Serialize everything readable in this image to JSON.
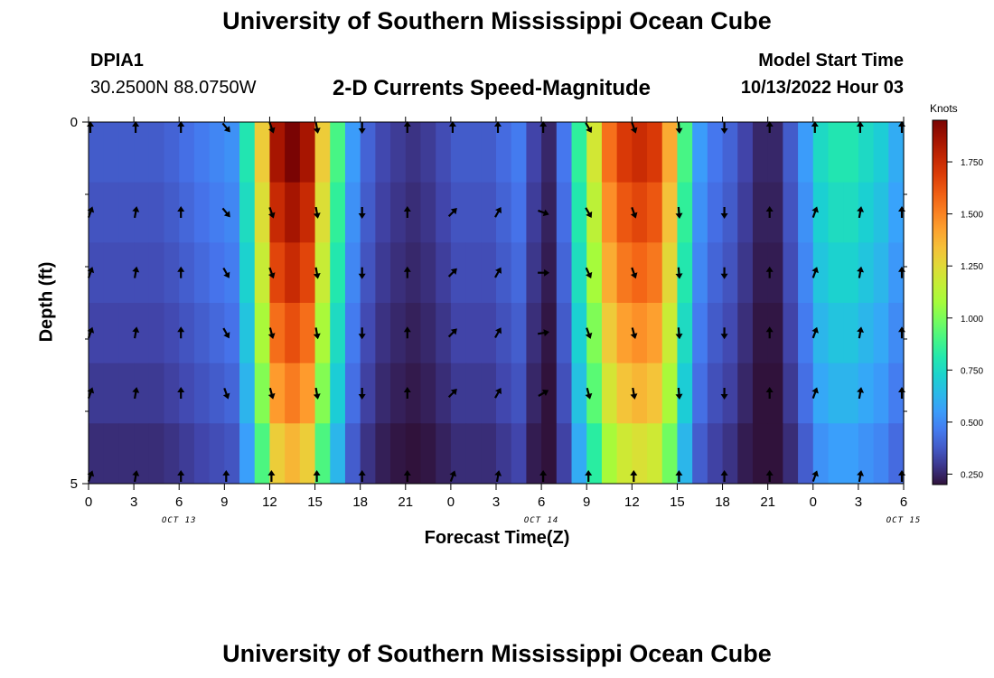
{
  "header": {
    "title": "University of Southern Mississippi Ocean Cube",
    "station": "DPIA1",
    "coords": "30.2500N  88.0750W",
    "subtitle": "2-D Currents Speed-Magnitude",
    "model_start_label": "Model Start Time",
    "model_start_value": "10/13/2022 Hour 03"
  },
  "footer": {
    "title": "University of Southern Mississippi Ocean Cube"
  },
  "chart_data": {
    "type": "heatmap",
    "xlabel": "Forecast Time(Z)",
    "ylabel": "Depth (ft)",
    "x_tick_labels": [
      "0",
      "3",
      "6",
      "9",
      "12",
      "15",
      "18",
      "21",
      "0",
      "3",
      "6",
      "9",
      "12",
      "15",
      "18",
      "21",
      "0",
      "3",
      "6"
    ],
    "date_labels": [
      {
        "label": "OCT 13",
        "tick_index": 2
      },
      {
        "label": "OCT 14",
        "tick_index": 10
      },
      {
        "label": "OCT 15",
        "tick_index": 18
      }
    ],
    "x_range_hours": [
      0,
      54
    ],
    "y_range_ft": [
      0,
      5
    ],
    "y_tick_labels": [
      "0",
      "5"
    ],
    "y_minor_ticks": [
      1,
      2,
      3,
      4
    ],
    "depth_rows": [
      0,
      1,
      2,
      3,
      4,
      5
    ],
    "speed_unit": "Knots",
    "colorbar": {
      "range": [
        0.2,
        1.95
      ],
      "tick_values": [
        0.25,
        0.5,
        0.75,
        1.0,
        1.25,
        1.5,
        1.75
      ],
      "tick_labels": [
        "0.250",
        "0.500",
        "0.750",
        "1.000",
        "1.250",
        "1.500",
        "1.750"
      ]
    },
    "speed_hourly_top": [
      0.38,
      0.38,
      0.38,
      0.38,
      0.38,
      0.4,
      0.43,
      0.46,
      0.49,
      0.52,
      0.8,
      1.3,
      1.85,
      1.95,
      1.85,
      1.3,
      0.9,
      0.55,
      0.4,
      0.33,
      0.3,
      0.28,
      0.3,
      0.34,
      0.38,
      0.38,
      0.38,
      0.42,
      0.46,
      0.32,
      0.25,
      0.45,
      0.85,
      1.2,
      1.55,
      1.7,
      1.75,
      1.7,
      1.4,
      0.9,
      0.55,
      0.45,
      0.4,
      0.32,
      0.25,
      0.25,
      0.38,
      0.55,
      0.75,
      0.8,
      0.8,
      0.75,
      0.7,
      0.6,
      0.55
    ],
    "depth_factors": [
      1.0,
      0.95,
      0.9,
      0.84,
      0.78,
      0.7
    ],
    "arrow_hours": [
      0,
      3,
      6,
      9,
      12,
      15,
      18,
      21,
      24,
      27,
      30,
      33,
      36,
      39,
      42,
      45,
      48,
      51,
      54
    ],
    "arrow_directions_deg": {
      "depth_0": [
        0,
        0,
        0,
        140,
        160,
        170,
        180,
        0,
        0,
        0,
        0,
        150,
        160,
        175,
        180,
        0,
        0,
        0,
        0
      ],
      "depth_1": [
        20,
        10,
        0,
        140,
        160,
        170,
        180,
        0,
        45,
        30,
        110,
        150,
        160,
        175,
        180,
        0,
        20,
        10,
        0
      ],
      "depth_2": [
        20,
        10,
        0,
        150,
        160,
        170,
        180,
        0,
        45,
        30,
        90,
        155,
        160,
        175,
        180,
        0,
        20,
        10,
        0
      ],
      "depth_3": [
        20,
        10,
        0,
        150,
        165,
        170,
        180,
        0,
        45,
        30,
        80,
        160,
        165,
        175,
        180,
        0,
        20,
        10,
        0
      ],
      "depth_4": [
        20,
        10,
        0,
        160,
        165,
        170,
        180,
        0,
        45,
        30,
        60,
        165,
        170,
        175,
        180,
        0,
        20,
        10,
        0
      ],
      "depth_5": [
        20,
        10,
        0,
        0,
        0,
        0,
        0,
        0,
        20,
        10,
        0,
        0,
        0,
        0,
        0,
        0,
        20,
        10,
        0
      ]
    }
  }
}
